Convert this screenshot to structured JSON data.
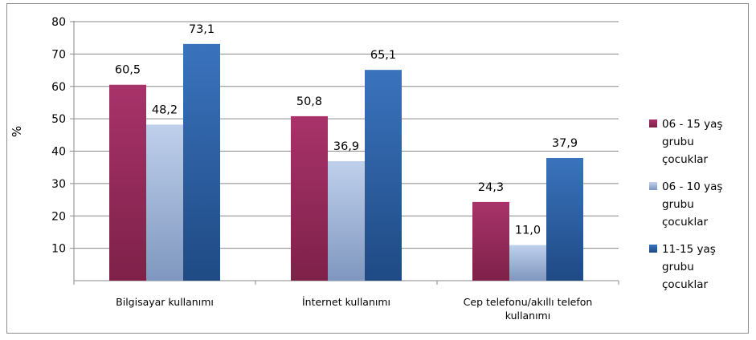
{
  "chart_data": {
    "type": "bar",
    "title": "",
    "xlabel": "",
    "ylabel": "%",
    "ylim": [
      0,
      80
    ],
    "yticks": [
      "10",
      "20",
      "30",
      "40",
      "50",
      "60",
      "70",
      "80"
    ],
    "grid": true,
    "legend_position": "right",
    "categories": [
      [
        "Bilgisayar kullanımı"
      ],
      [
        "İnternet kullanımı"
      ],
      [
        "Cep telefonu/akıllı telefon",
        "kullanımı"
      ]
    ],
    "series": [
      {
        "name": [
          "06 - 15 yaş",
          "grubu",
          "çocuklar"
        ],
        "values": [
          60.5,
          50.8,
          24.3
        ],
        "labels": [
          "60,5",
          "50,8",
          "24,3"
        ],
        "color": "#9b2d5f"
      },
      {
        "name": [
          "06 - 10 yaş",
          "grubu",
          "çocuklar"
        ],
        "values": [
          48.2,
          36.9,
          11.0
        ],
        "labels": [
          "48,2",
          "36,9",
          "11,0"
        ],
        "color": "#9fb6dc"
      },
      {
        "name": [
          "11-15 yaş",
          "grubu",
          "çocuklar"
        ],
        "values": [
          73.1,
          65.1,
          37.9
        ],
        "labels": [
          "73,1",
          "65,1",
          "37,9"
        ],
        "color": "#2f64a8"
      }
    ]
  }
}
